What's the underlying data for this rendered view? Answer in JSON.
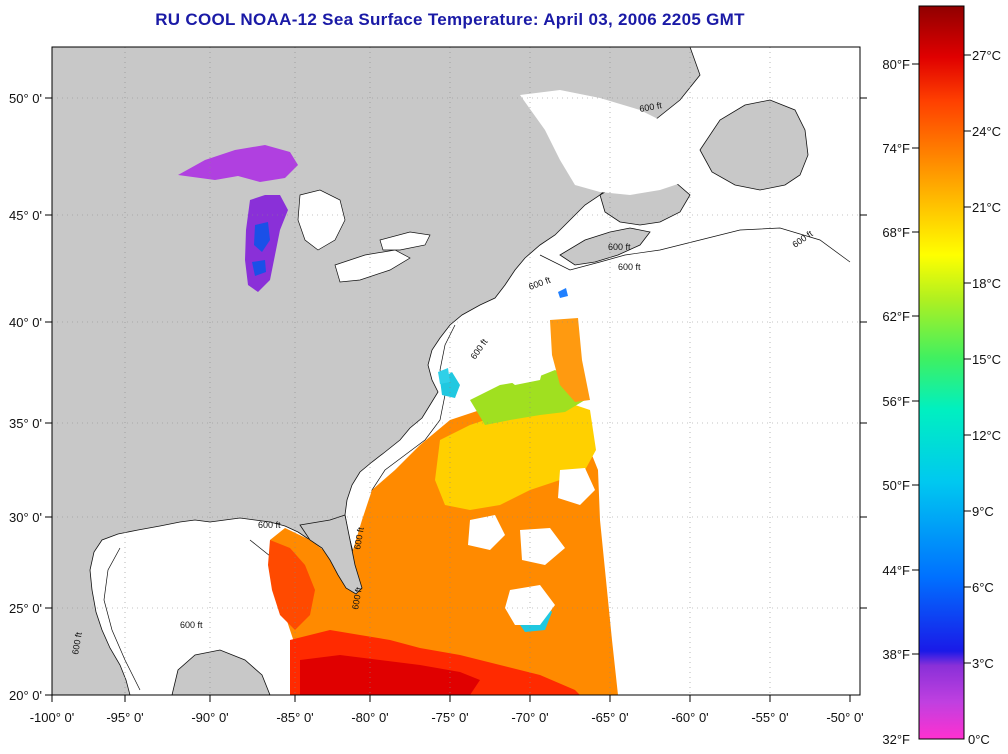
{
  "title": "RU COOL  NOAA-12  Sea Surface Temperature:  April 03, 2006 2205 GMT",
  "axes": {
    "lon_ticks": [
      "-100° 0'",
      "-95° 0'",
      "-90° 0'",
      "-85° 0'",
      "-80° 0'",
      "-75° 0'",
      "-70° 0'",
      "-65° 0'",
      "-60° 0'",
      "-55° 0'",
      "-50° 0'"
    ],
    "lat_ticks": [
      "50° 0'",
      "45° 0'",
      "40° 0'",
      "35° 0'",
      "30° 0'",
      "25° 0'",
      "20° 0'"
    ]
  },
  "contour_labels": [
    "600 ft",
    "600 ft",
    "600 ft",
    "600 ft",
    "600 ft",
    "600 ft",
    "600 ft",
    "600 ft",
    "600 ft",
    "600 ft",
    "600 ft"
  ],
  "colorbar": {
    "fahrenheit": [
      "80°F",
      "74°F",
      "68°F",
      "62°F",
      "56°F",
      "50°F",
      "44°F",
      "38°F",
      "32°F"
    ],
    "celsius": [
      "27°C",
      "24°C",
      "21°C",
      "18°C",
      "15°C",
      "12°C",
      "9°C",
      "6°C",
      "3°C",
      "0°C"
    ],
    "stops": [
      "#ff30d0",
      "#c040e0",
      "#8a30d8",
      "#1a1ae8",
      "#0070ff",
      "#00c8f0",
      "#00f0c0",
      "#40f060",
      "#b0f020",
      "#ffff00",
      "#ffc000",
      "#ff8000",
      "#ff4000",
      "#e00000",
      "#900000"
    ]
  },
  "colors": {
    "land": "#c8c8c8",
    "no_data": "#ffffff",
    "grid": "#888888",
    "title": "#1a1aa6"
  }
}
